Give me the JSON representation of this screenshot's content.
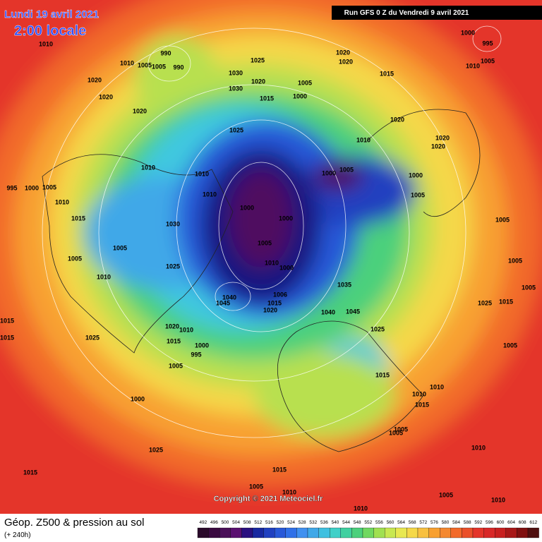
{
  "header": {
    "date": "Lundi 19 avril 2021",
    "time": "2:00 locale",
    "run": "Run GFS 0 Z du Vendredi 9 avril 2021"
  },
  "footer": {
    "title": "Géop. Z500 & pression au sol",
    "subtitle": "(+ 240h)",
    "copyright": "Copyright © 2021 Meteociel.fr"
  },
  "scale": {
    "values": [
      492,
      496,
      500,
      504,
      508,
      512,
      516,
      520,
      524,
      528,
      532,
      536,
      540,
      544,
      548,
      552,
      556,
      560,
      564,
      568,
      572,
      576,
      580,
      584,
      588,
      592,
      596,
      600,
      604,
      608,
      612
    ]
  },
  "pressure_labels": [
    1010,
    990,
    1010,
    1005,
    1005,
    990,
    1020,
    1020,
    1020,
    1025,
    1030,
    1020,
    1030,
    1015,
    1005,
    1000,
    1020,
    1020,
    1015,
    1025,
    1010,
    1020,
    1020,
    1020,
    1010,
    1010,
    1000,
    1005,
    1000,
    995,
    1000,
    1005,
    1010,
    1010,
    1005,
    1000,
    1000,
    1015,
    1030,
    1005,
    1005,
    1005,
    1010,
    1025,
    1010,
    1000,
    1005,
    1005,
    1005,
    1040,
    1045,
    1006,
    1015,
    1020,
    1035,
    1040,
    1045,
    1025,
    1025,
    1015,
    1015,
    1015,
    1020,
    1010,
    1015,
    1025,
    1000,
    995,
    1005,
    1005,
    1015,
    1010,
    1010,
    1015,
    1000,
    1005,
    1005,
    1025,
    1015,
    1015,
    1010,
    1005,
    1010,
    1005,
    1010,
    1010,
    1000,
    1010,
    1005,
    995
  ]
}
